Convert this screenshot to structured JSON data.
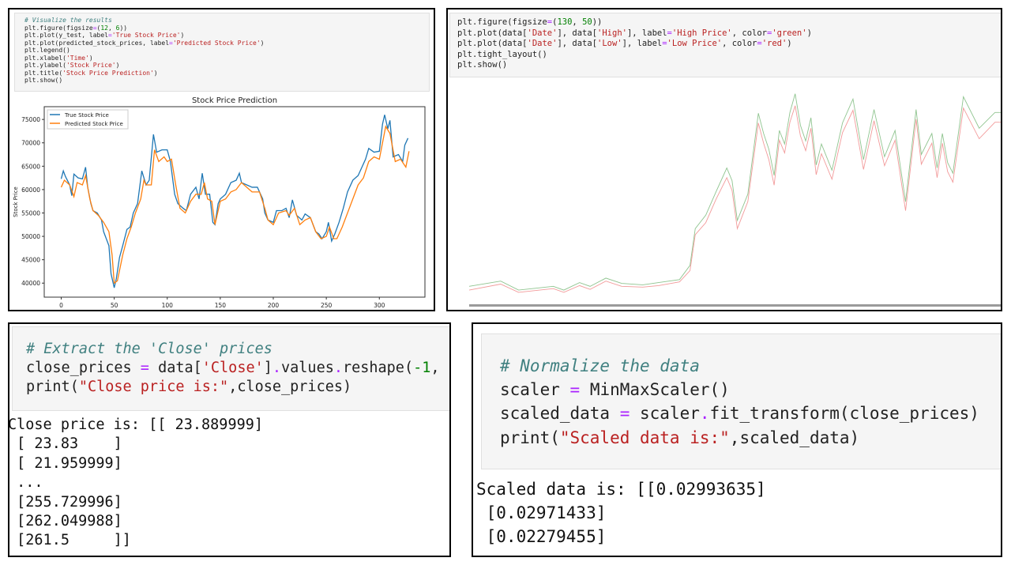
{
  "panels": {
    "prediction": {
      "code": [
        [
          [
            "# Visualize the results",
            "cm"
          ]
        ],
        [
          [
            "plt.figure(figsize",
            ""
          ],
          [
            "=",
            "op"
          ],
          [
            "(",
            ""
          ],
          [
            "12",
            "num"
          ],
          [
            ", ",
            ""
          ],
          [
            "6",
            "num"
          ],
          [
            "))",
            ""
          ]
        ],
        [
          [
            "plt.plot(y_test, label",
            ""
          ],
          [
            "=",
            "op"
          ],
          [
            "'True Stock Price'",
            "str"
          ],
          [
            ")",
            ""
          ]
        ],
        [
          [
            "plt.plot(predicted_stock_prices, label",
            ""
          ],
          [
            "=",
            "op"
          ],
          [
            "'Predicted Stock Price'",
            "str"
          ],
          [
            ")",
            ""
          ]
        ],
        [
          [
            "plt.legend()",
            ""
          ]
        ],
        [
          [
            "plt.xlabel(",
            ""
          ],
          [
            "'Time'",
            "str"
          ],
          [
            ")",
            ""
          ]
        ],
        [
          [
            "plt.ylabel(",
            ""
          ],
          [
            "'Stock Price'",
            "str"
          ],
          [
            ")",
            ""
          ]
        ],
        [
          [
            "plt.title(",
            ""
          ],
          [
            "'Stock Price Prediction'",
            "str"
          ],
          [
            ")",
            ""
          ]
        ],
        [
          [
            "plt.show()",
            ""
          ]
        ]
      ]
    },
    "high_low": {
      "code": [
        [
          [
            "plt.figure(figsize",
            ""
          ],
          [
            "=",
            "op"
          ],
          [
            "(",
            ""
          ],
          [
            "130",
            "num"
          ],
          [
            ", ",
            ""
          ],
          [
            "50",
            "num"
          ],
          [
            "))",
            ""
          ]
        ],
        [
          [
            "plt.plot(data[",
            ""
          ],
          [
            "'Date'",
            "str"
          ],
          [
            "], data[",
            ""
          ],
          [
            "'High'",
            "str"
          ],
          [
            "], label",
            ""
          ],
          [
            "=",
            "op"
          ],
          [
            "'High Price'",
            "str"
          ],
          [
            ", color",
            ""
          ],
          [
            "=",
            "op"
          ],
          [
            "'green'",
            "str"
          ],
          [
            ")",
            ""
          ]
        ],
        [
          [
            "plt.plot(data[",
            ""
          ],
          [
            "'Date'",
            "str"
          ],
          [
            "], data[",
            ""
          ],
          [
            "'Low'",
            "str"
          ],
          [
            "], label",
            ""
          ],
          [
            "=",
            "op"
          ],
          [
            "'Low Price'",
            "str"
          ],
          [
            ", color",
            ""
          ],
          [
            "=",
            "op"
          ],
          [
            "'red'",
            "str"
          ],
          [
            ")",
            ""
          ]
        ],
        [
          [
            "plt.tight_layout()",
            ""
          ]
        ],
        [
          [
            "plt.show()",
            ""
          ]
        ]
      ]
    },
    "close": {
      "code": [
        [
          [
            "# Extract the 'Close' prices",
            "cm"
          ]
        ],
        [
          [
            "close_prices ",
            ""
          ],
          [
            "=",
            "op"
          ],
          [
            " data[",
            ""
          ],
          [
            "'Close'",
            "str"
          ],
          [
            "]",
            ""
          ],
          [
            ".",
            "op"
          ],
          [
            "values",
            ""
          ],
          [
            ".",
            "op"
          ],
          [
            "reshape(",
            ""
          ],
          [
            "-1",
            "num"
          ],
          [
            ", ",
            ""
          ],
          [
            "1",
            "num"
          ],
          [
            ")",
            ""
          ]
        ],
        [
          [
            "print(",
            ""
          ],
          [
            "\"Close price is:\"",
            "str"
          ],
          [
            ",close_prices)",
            ""
          ]
        ]
      ],
      "output": [
        "Close price is: [[ 23.889999]",
        " [ 23.83    ]",
        " [ 21.959999]",
        " ...",
        " [255.729996]",
        " [262.049988]",
        " [261.5     ]]"
      ]
    },
    "scaled": {
      "code": [
        [
          [
            "# Normalize the data",
            "cm"
          ]
        ],
        [
          [
            "scaler ",
            ""
          ],
          [
            "=",
            "op"
          ],
          [
            " MinMaxScaler()",
            ""
          ]
        ],
        [
          [
            "scaled_data ",
            ""
          ],
          [
            "=",
            "op"
          ],
          [
            " scaler",
            ""
          ],
          [
            ".",
            "op"
          ],
          [
            "fit_transform(close_prices)",
            ""
          ]
        ],
        [
          [
            "print(",
            ""
          ],
          [
            "\"Scaled data is:\"",
            "str"
          ],
          [
            ",scaled_data)",
            ""
          ]
        ]
      ],
      "output": [
        "Scaled data is: [[0.02993635]",
        " [0.02971433]",
        " [0.02279455]"
      ]
    }
  },
  "chart_data": [
    {
      "type": "line",
      "title": "Stock Price Prediction",
      "xlabel": "Time",
      "ylabel": "Stock Price",
      "xlim": [
        -16,
        343
      ],
      "ylim": [
        37000,
        77730
      ],
      "xticks": [
        0,
        50,
        100,
        150,
        200,
        250,
        300
      ],
      "yticks": [
        40000,
        45000,
        50000,
        55000,
        60000,
        65000,
        70000,
        75000
      ],
      "grid": false,
      "legend": "top-left",
      "series": [
        {
          "name": "True Stock Price",
          "color": "#1f77b4",
          "x": [
            0,
            2,
            4,
            8,
            10,
            12,
            16,
            20,
            23,
            25,
            28,
            30,
            34,
            38,
            40,
            45,
            47,
            50,
            52,
            55,
            58,
            62,
            65,
            68,
            72,
            76,
            80,
            83,
            87,
            90,
            95,
            100,
            103,
            107,
            110,
            115,
            118,
            122,
            127,
            130,
            133,
            136,
            140,
            143,
            145,
            148,
            150,
            155,
            160,
            165,
            168,
            170,
            175,
            180,
            185,
            190,
            192,
            195,
            200,
            203,
            208,
            212,
            215,
            218,
            222,
            227,
            230,
            235,
            240,
            243,
            246,
            250,
            252,
            255,
            258,
            262,
            266,
            270,
            275,
            280,
            283,
            287,
            290,
            295,
            300,
            303,
            305,
            308,
            310,
            313,
            318,
            322,
            324,
            327
          ],
          "y": [
            62300,
            64000,
            62800,
            61000,
            58700,
            63300,
            62500,
            62300,
            64800,
            60500,
            57000,
            55500,
            55000,
            53500,
            51000,
            48000,
            42000,
            39000,
            41000,
            45500,
            48000,
            51500,
            52000,
            55000,
            57000,
            64000,
            61000,
            62000,
            71800,
            68000,
            68500,
            68500,
            66000,
            59000,
            57000,
            56000,
            55500,
            59000,
            60500,
            58000,
            63500,
            59000,
            59000,
            53000,
            52500,
            57000,
            58000,
            59000,
            61500,
            62000,
            63500,
            61500,
            61000,
            60500,
            60500,
            58000,
            55000,
            53500,
            53000,
            55500,
            55500,
            56000,
            54000,
            57800,
            54500,
            53500,
            54800,
            54000,
            51000,
            50500,
            49500,
            51000,
            53000,
            49000,
            50500,
            53000,
            56000,
            59500,
            62000,
            63000,
            64500,
            66500,
            68800,
            68000,
            68200,
            74000,
            76000,
            73000,
            74800,
            67000,
            67500,
            66000,
            69500,
            71000
          ]
        },
        {
          "name": "Predicted Stock Price",
          "color": "#ff7f0e",
          "x": [
            0,
            3,
            8,
            12,
            15,
            20,
            23,
            27,
            30,
            35,
            40,
            45,
            48,
            50,
            53,
            58,
            62,
            66,
            70,
            75,
            78,
            80,
            85,
            88,
            92,
            97,
            100,
            104,
            108,
            112,
            117,
            122,
            127,
            132,
            135,
            138,
            142,
            145,
            150,
            155,
            160,
            165,
            170,
            175,
            180,
            187,
            192,
            195,
            200,
            205,
            212,
            215,
            220,
            225,
            230,
            235,
            240,
            245,
            250,
            253,
            257,
            260,
            265,
            270,
            275,
            280,
            285,
            290,
            295,
            300,
            303,
            306,
            310,
            315,
            320,
            325,
            328
          ],
          "y": [
            60500,
            62000,
            61000,
            58500,
            61500,
            61000,
            63000,
            58000,
            55500,
            54500,
            53000,
            51000,
            46000,
            40000,
            40500,
            46000,
            49500,
            52000,
            55000,
            58000,
            62000,
            61000,
            61000,
            68500,
            66000,
            67000,
            66000,
            66500,
            61000,
            56000,
            55000,
            57500,
            59000,
            59000,
            61500,
            58000,
            57500,
            52500,
            57500,
            58000,
            59500,
            60000,
            61500,
            60500,
            59500,
            59500,
            56000,
            53500,
            52500,
            55000,
            55500,
            54500,
            56000,
            52500,
            53500,
            54000,
            51000,
            49500,
            50000,
            52000,
            49500,
            49500,
            52000,
            55000,
            58000,
            61000,
            62500,
            66000,
            67000,
            66500,
            70000,
            73500,
            72000,
            66000,
            66500,
            64800,
            68200
          ]
        }
      ]
    },
    {
      "type": "line",
      "grid": false,
      "ylim": [
        1,
        291
      ],
      "series": [
        {
          "name": "High Price",
          "color": "green",
          "x": [
            0,
            6,
            9.4,
            16,
            18,
            21,
            23,
            26,
            29,
            33,
            36,
            40,
            42,
            43,
            45,
            47,
            49,
            50,
            51,
            53,
            55,
            56,
            57,
            58,
            59,
            60,
            61,
            62,
            63,
            64,
            65,
            66,
            67,
            69,
            71,
            73,
            75,
            77,
            79,
            81,
            83,
            85,
            86,
            88,
            89,
            90,
            91,
            92,
            94,
            97,
            100,
            100.7,
            101.4
          ],
          "y": [
            27,
            34,
            22,
            27,
            22,
            32,
            27,
            38,
            31,
            29,
            32,
            36,
            55,
            104,
            122,
            154,
            185,
            168,
            115,
            150,
            258,
            231,
            210,
            175,
            235,
            217,
            259,
            284,
            242,
            221,
            252,
            189,
            217,
            182,
            245,
            277,
            196,
            263,
            200,
            235,
            140,
            263,
            203,
            231,
            185,
            231,
            192,
            178,
            280,
            238,
            259,
            259,
            259
          ]
        },
        {
          "name": "Low Price",
          "color": "red",
          "x": [
            0,
            6,
            9.4,
            16,
            18,
            21,
            23,
            26,
            29,
            33,
            36,
            40,
            42,
            43,
            45,
            47,
            49,
            50,
            51,
            53,
            55,
            56,
            57,
            58,
            59,
            60,
            61,
            62,
            63,
            64,
            65,
            66,
            67,
            69,
            71,
            73,
            75,
            77,
            79,
            81,
            83,
            85,
            86,
            88,
            89,
            90,
            91,
            92,
            94,
            97,
            100,
            100.7,
            101.4
          ],
          "y": [
            22,
            30,
            19,
            24,
            19,
            28,
            23,
            34,
            27,
            26,
            28,
            33,
            48,
            96,
            112,
            144,
            172,
            155,
            104,
            140,
            245,
            218,
            196,
            162,
            222,
            205,
            246,
            268,
            228,
            208,
            238,
            176,
            204,
            170,
            232,
            262,
            183,
            248,
            188,
            222,
            128,
            250,
            190,
            218,
            172,
            218,
            180,
            166,
            265,
            224,
            246,
            246,
            246
          ]
        }
      ]
    }
  ]
}
